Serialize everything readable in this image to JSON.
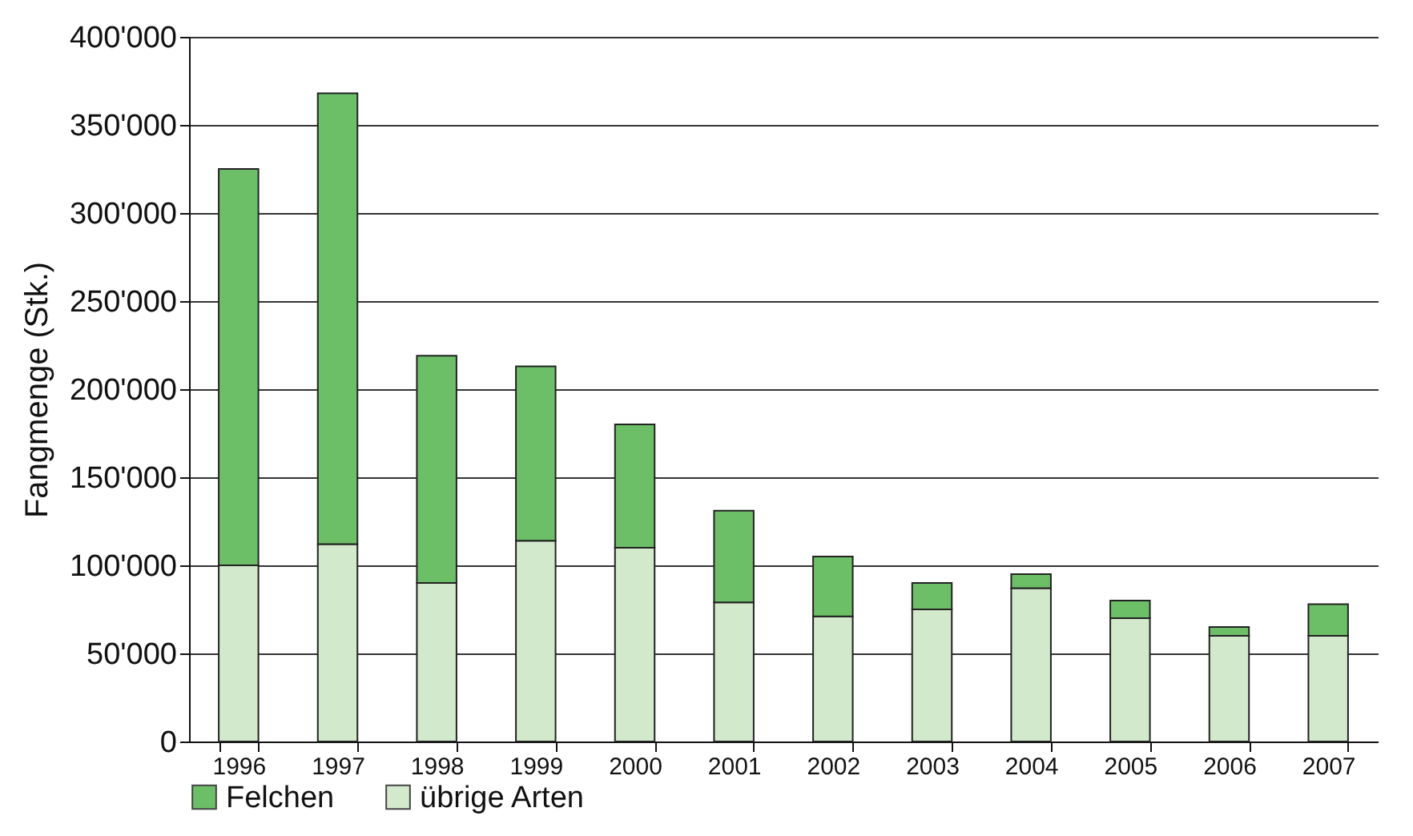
{
  "chart_data": {
    "type": "bar",
    "ylabel": "Fangmenge (Stk.)",
    "stacked": true,
    "categories": [
      "1996",
      "1997",
      "1998",
      "1999",
      "2000",
      "2001",
      "2002",
      "2003",
      "2004",
      "2005",
      "2006",
      "2007"
    ],
    "series": [
      {
        "name": "übrige Arten",
        "color": "#d3e9cc",
        "values": [
          100000,
          112000,
          90000,
          114000,
          110000,
          79000,
          71000,
          75000,
          87000,
          70000,
          60000,
          60000
        ]
      },
      {
        "name": "Felchen",
        "color": "#6dbf67",
        "values": [
          225000,
          256000,
          129000,
          99000,
          70000,
          52000,
          34000,
          15000,
          8000,
          10000,
          5000,
          18000
        ]
      }
    ],
    "ylim": [
      0,
      400000
    ],
    "yticks": [
      {
        "value": 0,
        "label": "0"
      },
      {
        "value": 50000,
        "label": "50'000"
      },
      {
        "value": 100000,
        "label": "100'000"
      },
      {
        "value": 150000,
        "label": "150'000"
      },
      {
        "value": 200000,
        "label": "200'000"
      },
      {
        "value": 250000,
        "label": "250'000"
      },
      {
        "value": 300000,
        "label": "300'000"
      },
      {
        "value": 350000,
        "label": "350'000"
      },
      {
        "value": 400000,
        "label": "400'000"
      }
    ],
    "grid": "y",
    "legend": "bottom left"
  }
}
